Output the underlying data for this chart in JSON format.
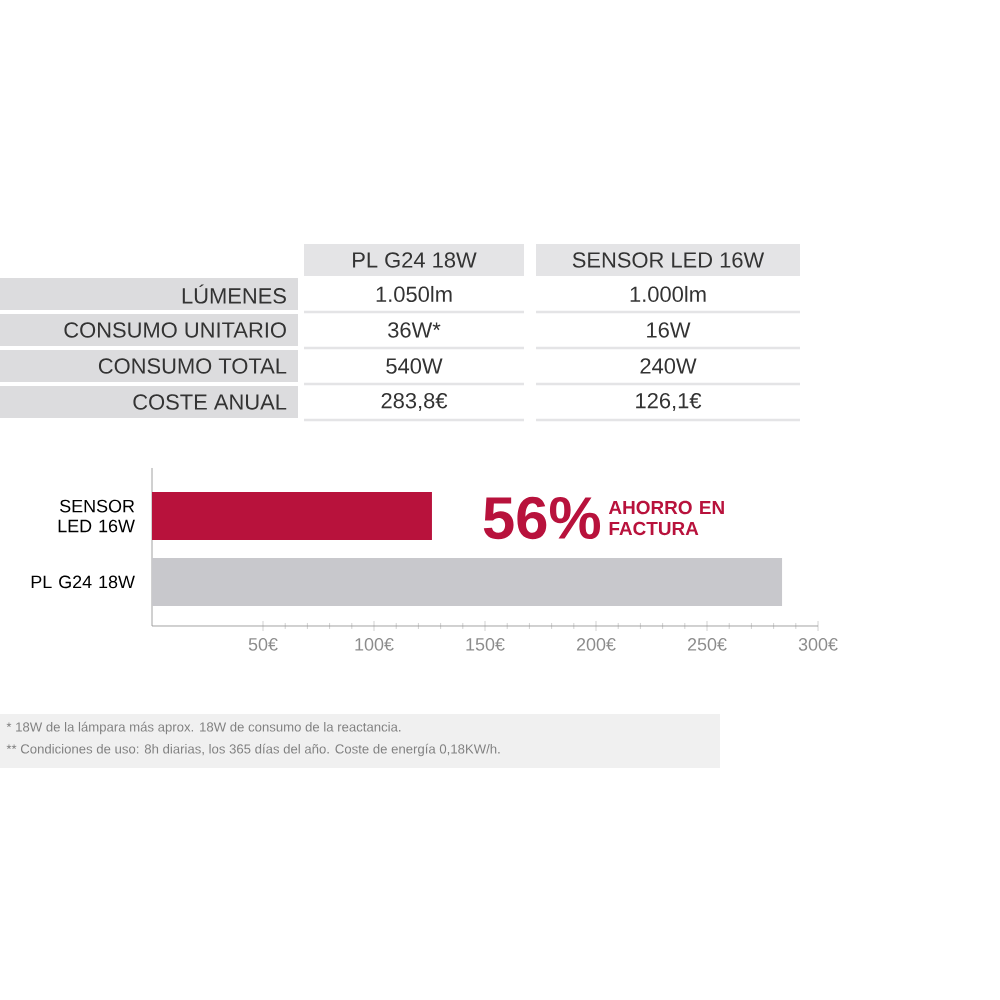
{
  "chart_data": [
    {
      "type": "other",
      "categories": [
        "PL G24 18W",
        "SENSOR LED 16W"
      ],
      "y_categories": [
        "LÚMENES",
        "CONSUMO UNITARIO",
        "CONSUMO TOTAL",
        "COSTE ANUAL"
      ],
      "cell_labels": [
        [
          "1.050lm",
          "1.000lm"
        ],
        [
          "36W*",
          "16W"
        ],
        [
          "540W",
          "240W"
        ],
        [
          "283,8€",
          "126,1€"
        ]
      ]
    },
    {
      "type": "bar",
      "orientation": "horizontal",
      "categories": [
        "SENSOR LED 16W",
        "PL G24 18W"
      ],
      "values": [
        126.1,
        283.8
      ],
      "colors": [
        "#b8123c",
        "#c8c8cc"
      ],
      "xlim": [
        0,
        300
      ],
      "xticks": [
        {
          "value": 50,
          "label": "50€"
        },
        {
          "value": 100,
          "label": "100€"
        },
        {
          "value": 150,
          "label": "150€"
        },
        {
          "value": 200,
          "label": "200€"
        },
        {
          "value": 250,
          "label": "250€"
        },
        {
          "value": 300,
          "label": "300€"
        }
      ],
      "annotations": [
        "56%",
        "AHORRO EN FACTURA",
        "* 18W de la lámpara más aprox. 18W de consumo de la reactancia.",
        "** Condiciones de uso: 8h diarias, los 365 días del año. Coste de energía 0,18KW/h."
      ]
    }
  ]
}
